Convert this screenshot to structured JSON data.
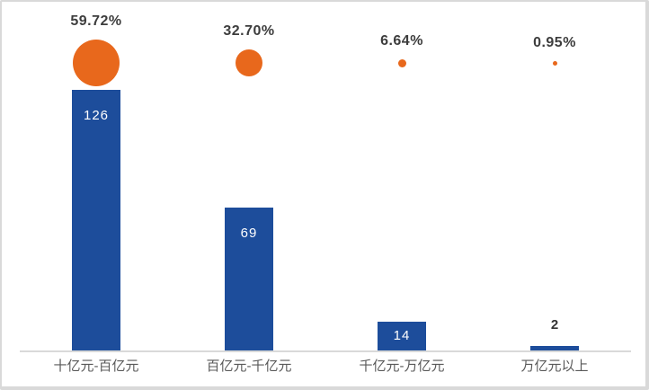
{
  "chart_data": {
    "type": "bar",
    "subtype": "bar-with-bubble-percentage",
    "categories": [
      "十亿元-百亿元",
      "百亿元-千亿元",
      "千亿元-万亿元",
      "万亿元以上"
    ],
    "series": [
      {
        "name": "count",
        "type": "bar",
        "values": [
          126,
          69,
          14,
          2
        ],
        "data_labels": [
          "126",
          "69",
          "14",
          "2"
        ],
        "color": "#1d4d9b"
      },
      {
        "name": "percentage",
        "type": "bubble",
        "values": [
          59.72,
          32.7,
          6.64,
          0.95
        ],
        "data_labels": [
          "59.72%",
          "32.70%",
          "6.64%",
          "0.95%"
        ],
        "color": "#e8681c"
      }
    ],
    "title": "",
    "xlabel": "",
    "ylabel": "",
    "ylim": [
      0,
      126
    ],
    "grid": false,
    "legend": false,
    "axis_line_color": "#d9d9d9"
  }
}
